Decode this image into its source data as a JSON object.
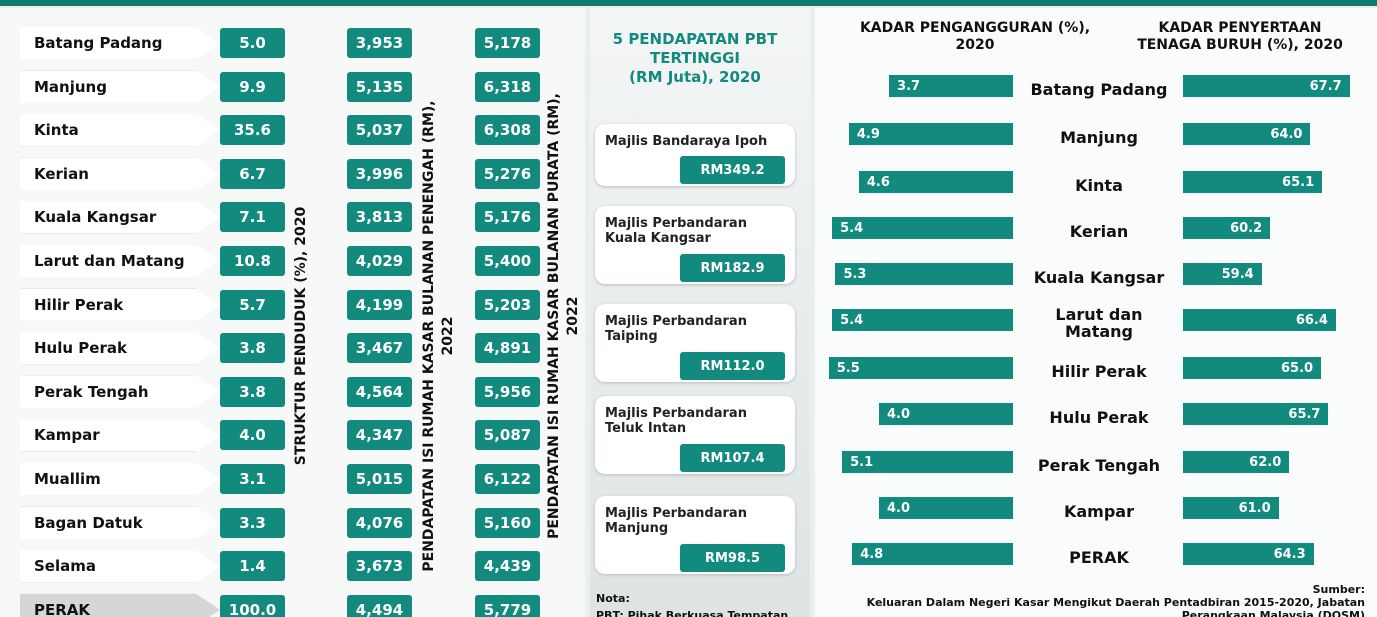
{
  "districts": {
    "rows": [
      {
        "name": "Batang Padang",
        "population": "5.0",
        "median_income": "3,953",
        "mean_income": "5,178"
      },
      {
        "name": "Manjung",
        "population": "9.9",
        "median_income": "5,135",
        "mean_income": "6,318"
      },
      {
        "name": "Kinta",
        "population": "35.6",
        "median_income": "5,037",
        "mean_income": "6,308"
      },
      {
        "name": "Kerian",
        "population": "6.7",
        "median_income": "3,996",
        "mean_income": "5,276"
      },
      {
        "name": "Kuala Kangsar",
        "population": "7.1",
        "median_income": "3,813",
        "mean_income": "5,176"
      },
      {
        "name": "Larut dan Matang",
        "population": "10.8",
        "median_income": "4,029",
        "mean_income": "5,400"
      },
      {
        "name": "Hilir Perak",
        "population": "5.7",
        "median_income": "4,199",
        "mean_income": "5,203"
      },
      {
        "name": "Hulu Perak",
        "population": "3.8",
        "median_income": "3,467",
        "mean_income": "4,891"
      },
      {
        "name": "Perak Tengah",
        "population": "3.8",
        "median_income": "4,564",
        "mean_income": "5,956"
      },
      {
        "name": "Kampar",
        "population": "4.0",
        "median_income": "4,347",
        "mean_income": "5,087"
      },
      {
        "name": "Muallim",
        "population": "3.1",
        "median_income": "5,015",
        "mean_income": "6,122"
      },
      {
        "name": "Bagan Datuk",
        "population": "3.3",
        "median_income": "4,076",
        "mean_income": "5,160"
      },
      {
        "name": "Selama",
        "population": "1.4",
        "median_income": "3,673",
        "mean_income": "4,439"
      },
      {
        "name": "PERAK",
        "population": "100.0",
        "median_income": "4,494",
        "mean_income": "5,779"
      }
    ],
    "population_header": [
      "STRUKTUR PENDUDUK (%), 2020"
    ],
    "median_header": [
      "PENDAPATAN ISI RUMAH KASAR BULANAN PENENGAH (RM),",
      "2022"
    ],
    "mean_header": [
      "PENDAPATAN ISI RUMAH KASAR BULANAN PURATA (RM),",
      "2022"
    ]
  },
  "pbt": {
    "title": [
      "5 PENDAPATAN PBT",
      "TERTINGGI",
      "(RM Juta), 2020"
    ],
    "items": [
      {
        "name": "Majlis Bandaraya Ipoh",
        "value": "RM349.2"
      },
      {
        "name": "Majlis Perbandaran Kuala Kangsar",
        "value": "RM182.9"
      },
      {
        "name": "Majlis Perbandaran Taiping",
        "value": "RM112.0"
      },
      {
        "name": "Majlis Perbandaran Teluk Intan",
        "value": "RM107.4"
      },
      {
        "name": "Majlis Perbandaran Manjung",
        "value": "RM98.5"
      }
    ],
    "note_title": "Nota:",
    "note": "PBT:  Pihak Berkuasa Tempatan"
  },
  "labour": {
    "unemployment_title": [
      "KADAR PENGANGGURAN (%),",
      "2020"
    ],
    "participation_title": [
      "KADAR PENYERTAAN",
      "TENAGA BURUH (%), 2020"
    ],
    "rows": [
      {
        "name": "Batang Padang",
        "unemployment": 3.7,
        "unemployment_label": "3.7",
        "participation": 67.7,
        "participation_label": "67.7"
      },
      {
        "name": "Manjung",
        "unemployment": 4.9,
        "unemployment_label": "4.9",
        "participation": 64.0,
        "participation_label": "64.0"
      },
      {
        "name": "Kinta",
        "unemployment": 4.6,
        "unemployment_label": "4.6",
        "participation": 65.1,
        "participation_label": "65.1"
      },
      {
        "name": "Kerian",
        "unemployment": 5.4,
        "unemployment_label": "5.4",
        "participation": 60.2,
        "participation_label": "60.2"
      },
      {
        "name": "Kuala Kangsar",
        "unemployment": 5.3,
        "unemployment_label": "5.3",
        "participation": 59.4,
        "participation_label": "59.4"
      },
      {
        "name": "Larut dan Matang",
        "unemployment": 5.4,
        "unemployment_label": "5.4",
        "participation": 66.4,
        "participation_label": "66.4"
      },
      {
        "name": "Hilir Perak",
        "unemployment": 5.5,
        "unemployment_label": "5.5",
        "participation": 65.0,
        "participation_label": "65.0"
      },
      {
        "name": "Hulu Perak",
        "unemployment": 4.0,
        "unemployment_label": "4.0",
        "participation": 65.7,
        "participation_label": "65.7"
      },
      {
        "name": "Perak Tengah",
        "unemployment": 5.1,
        "unemployment_label": "5.1",
        "participation": 62.0,
        "participation_label": "62.0"
      },
      {
        "name": "Kampar",
        "unemployment": 4.0,
        "unemployment_label": "4.0",
        "participation": 61.0,
        "participation_label": "61.0"
      },
      {
        "name": "PERAK",
        "unemployment": 4.8,
        "unemployment_label": "4.8",
        "participation": 64.3,
        "participation_label": "64.3"
      }
    ],
    "source_title": "Sumber:",
    "source": "Keluaran Dalam Negeri Kasar Mengikut Daerah Pentadbiran  2015-2020, Jabatan Perangkaan Malaysia (DOSM)"
  }
}
